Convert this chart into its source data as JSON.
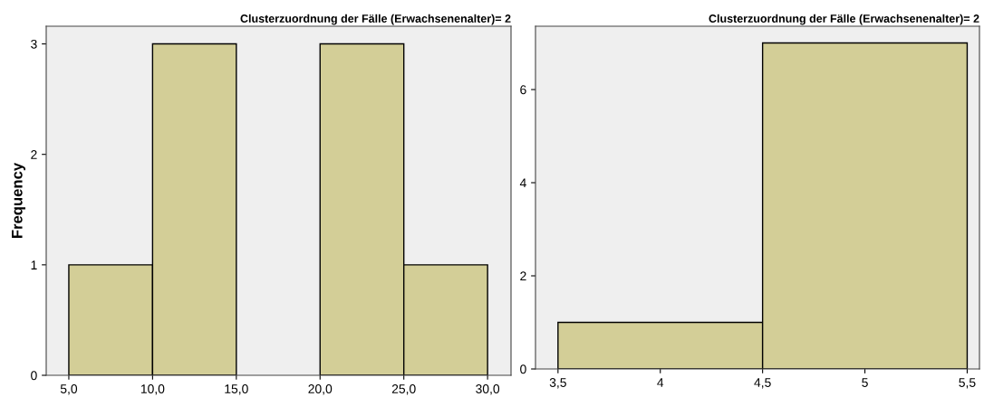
{
  "chart_data": [
    {
      "type": "histogram",
      "title": "Clusterzuordnung der Fälle (Erwachsenenalter)= 2",
      "ylabel": "Frequency",
      "bins": [
        5,
        10,
        15,
        20,
        25,
        30
      ],
      "values": [
        1,
        3,
        0,
        3,
        1
      ],
      "color": "#d3ce97",
      "xlim": [
        3.65,
        31.4
      ],
      "xticks": [
        {
          "value": 5,
          "label": "5,0"
        },
        {
          "value": 10,
          "label": "10,0"
        },
        {
          "value": 15,
          "label": "15,0"
        },
        {
          "value": 20,
          "label": "20,0"
        },
        {
          "value": 25,
          "label": "25,0"
        },
        {
          "value": 30,
          "label": "30,0"
        }
      ],
      "ylim": [
        0,
        3.16
      ],
      "yticks": [
        0,
        1,
        2,
        3
      ],
      "grid": false
    },
    {
      "type": "histogram",
      "title": "Clusterzuordnung der Fälle (Erwachsenenalter)= 2",
      "bins": [
        3.5,
        4.5,
        5.5
      ],
      "values": [
        1,
        7
      ],
      "color": "#d3ce97",
      "xlim": [
        3.39,
        5.56
      ],
      "xticks": [
        {
          "value": 3.5,
          "label": "3,5"
        },
        4,
        {
          "value": 4.5,
          "label": "4,5"
        },
        5,
        {
          "value": 5.5,
          "label": "5,5"
        }
      ],
      "ylim": [
        0,
        7.36
      ],
      "yticks": [
        0,
        2,
        4,
        6
      ],
      "grid": false
    }
  ]
}
